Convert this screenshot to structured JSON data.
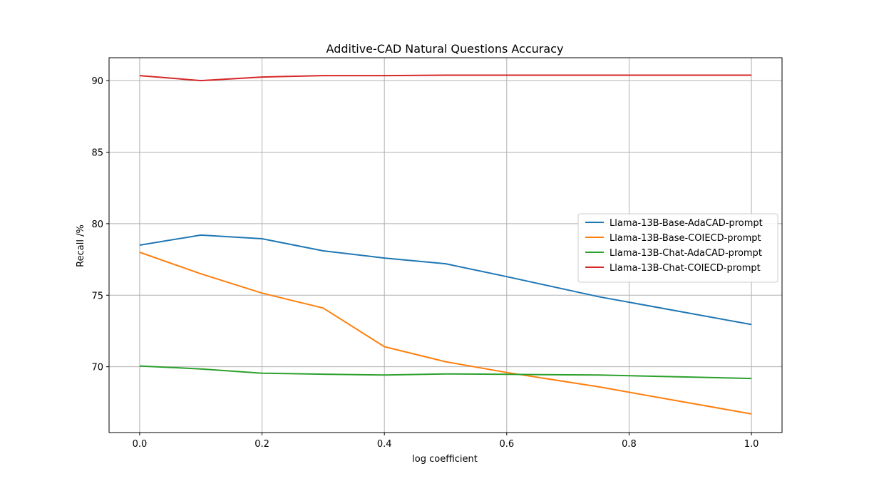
{
  "chart_data": {
    "type": "line",
    "title": "Additive-CAD Natural Questions Accuracy",
    "xlabel": "log coefficient",
    "ylabel": "Recall /%",
    "xlim": [
      -0.05,
      1.05
    ],
    "ylim": [
      65.4,
      91.6
    ],
    "xticks": [
      0.0,
      0.2,
      0.4,
      0.6,
      0.8,
      1.0
    ],
    "xtick_labels": [
      "0.0",
      "0.2",
      "0.4",
      "0.6",
      "0.8",
      "1.0"
    ],
    "yticks": [
      70,
      75,
      80,
      85,
      90
    ],
    "ytick_labels": [
      "70",
      "75",
      "80",
      "85",
      "90"
    ],
    "grid": true,
    "legend_position": "center-right",
    "x": [
      0.0,
      0.1,
      0.2,
      0.3,
      0.4,
      0.5,
      0.6,
      0.75,
      1.0
    ],
    "series": [
      {
        "name": "Llama-13B-Base-AdaCAD-prompt",
        "color": "#1f77b4",
        "values": [
          78.5,
          79.2,
          78.95,
          78.1,
          77.6,
          77.2,
          76.3,
          74.9,
          72.95
        ]
      },
      {
        "name": "Llama-13B-Base-COIECD-prompt",
        "color": "#ff7f0e",
        "values": [
          78.0,
          76.5,
          75.15,
          74.1,
          71.4,
          70.35,
          69.6,
          68.6,
          66.7
        ]
      },
      {
        "name": "Llama-13B-Chat-AdaCAD-prompt",
        "color": "#2ca02c",
        "values": [
          70.05,
          69.85,
          69.55,
          69.48,
          69.42,
          69.5,
          69.47,
          69.42,
          69.18
        ]
      },
      {
        "name": "Llama-13B-Chat-COIECD-prompt",
        "color": "#d62728",
        "values": [
          90.35,
          90.0,
          90.25,
          90.35,
          90.35,
          90.38,
          90.38,
          90.38,
          90.38
        ]
      }
    ]
  }
}
